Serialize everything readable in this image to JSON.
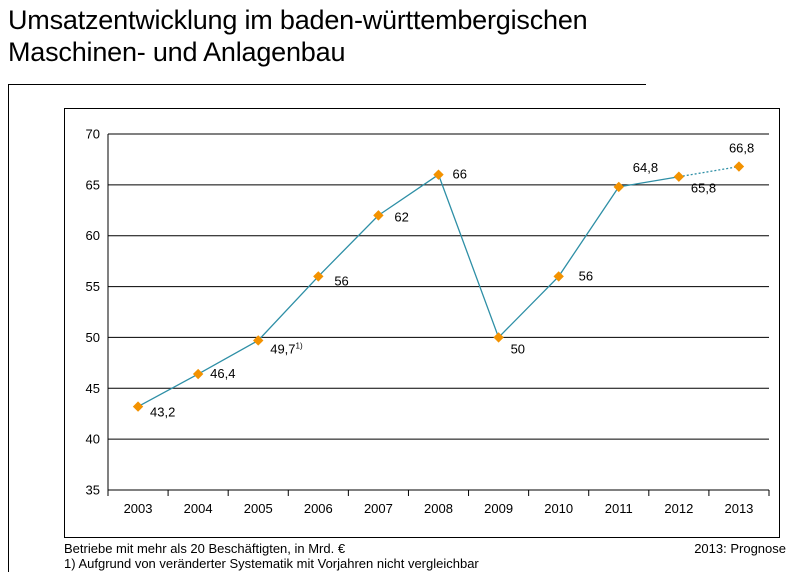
{
  "title": {
    "line1": "Umsatzentwicklung im baden-württembergischen",
    "line2": "Maschinen- und Anlagenbau"
  },
  "footnotes": {
    "basis": "Betriebe mit mehr als 20 Beschäftigten, in Mrd. €",
    "note1": "1) Aufgrund von veränderter Systematik mit Vorjahren nicht vergleichbar",
    "forecast": "2013: Prognose"
  },
  "chart_data": {
    "type": "line",
    "title": "Umsatzentwicklung im baden-württembergischen Maschinen- und Anlagenbau",
    "xlabel": "",
    "ylabel": "",
    "categories": [
      "2003",
      "2004",
      "2005",
      "2006",
      "2007",
      "2008",
      "2009",
      "2010",
      "2011",
      "2012",
      "2013"
    ],
    "series": [
      {
        "values": [
          43.2,
          46.4,
          49.7,
          56,
          62,
          66,
          50,
          56,
          64.8,
          65.8,
          66.8
        ],
        "labels": [
          "43,2",
          "46,4",
          "49,7",
          "56",
          "62",
          "66",
          "50",
          "56",
          "64,8",
          "65,8",
          "66,8"
        ],
        "label_superscripts": [
          "",
          "",
          "1)",
          "",
          "",
          "",
          "",
          "",
          "",
          "",
          ""
        ],
        "line_color": "#2e8fa6",
        "marker_color": "#f39200",
        "marker": "diamond",
        "forecast_from_index": 9
      }
    ],
    "ylim": [
      35,
      70
    ],
    "yticks": [
      35,
      40,
      45,
      50,
      55,
      60,
      65,
      70
    ],
    "grid": true
  }
}
